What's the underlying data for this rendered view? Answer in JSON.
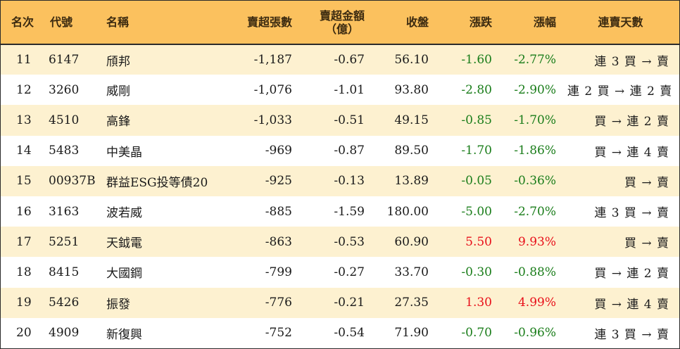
{
  "colors": {
    "header_bg": "#fbc15e",
    "stripe_bg": "#fdf1d0",
    "down_color": "#1a7d1a",
    "up_color": "#e8101a"
  },
  "headers": {
    "rank": "名次",
    "code": "代號",
    "name": "名稱",
    "net_sell_lots": "賣超張數",
    "net_sell_amount_line1": "賣超金額",
    "net_sell_amount_line2": "（億）",
    "close": "收盤",
    "change": "漲跌",
    "change_pct": "漲幅",
    "streak": "連賣天數"
  },
  "rows": [
    {
      "rank": "11",
      "code": "6147",
      "name": "頎邦",
      "lots": "-1,187",
      "amount": "-0.67",
      "close": "56.10",
      "change": "-1.60",
      "pct": "-2.77%",
      "dir": "down",
      "streak": "連 3 買 → 賣"
    },
    {
      "rank": "12",
      "code": "3260",
      "name": "威剛",
      "lots": "-1,076",
      "amount": "-1.01",
      "close": "93.80",
      "change": "-2.80",
      "pct": "-2.90%",
      "dir": "down",
      "streak": "連 2 買 → 連 2 賣"
    },
    {
      "rank": "13",
      "code": "4510",
      "name": "高鋒",
      "lots": "-1,033",
      "amount": "-0.51",
      "close": "49.15",
      "change": "-0.85",
      "pct": "-1.70%",
      "dir": "down",
      "streak": "買 → 連 2 賣"
    },
    {
      "rank": "14",
      "code": "5483",
      "name": "中美晶",
      "lots": "-969",
      "amount": "-0.87",
      "close": "89.50",
      "change": "-1.70",
      "pct": "-1.86%",
      "dir": "down",
      "streak": "買 → 連 4 賣"
    },
    {
      "rank": "15",
      "code": "00937B",
      "name": "群益ESG投等債20",
      "lots": "-925",
      "amount": "-0.13",
      "close": "13.89",
      "change": "-0.05",
      "pct": "-0.36%",
      "dir": "down",
      "streak": "買 → 賣"
    },
    {
      "rank": "16",
      "code": "3163",
      "name": "波若威",
      "lots": "-885",
      "amount": "-1.59",
      "close": "180.00",
      "change": "-5.00",
      "pct": "-2.70%",
      "dir": "down",
      "streak": "連 3 買 → 賣"
    },
    {
      "rank": "17",
      "code": "5251",
      "name": "天鉞電",
      "lots": "-863",
      "amount": "-0.53",
      "close": "60.90",
      "change": "5.50",
      "pct": "9.93%",
      "dir": "up",
      "streak": "買 → 賣"
    },
    {
      "rank": "18",
      "code": "8415",
      "name": "大國鋼",
      "lots": "-799",
      "amount": "-0.27",
      "close": "33.70",
      "change": "-0.30",
      "pct": "-0.88%",
      "dir": "down",
      "streak": "買 → 連 2 賣"
    },
    {
      "rank": "19",
      "code": "5426",
      "name": "振發",
      "lots": "-776",
      "amount": "-0.21",
      "close": "27.35",
      "change": "1.30",
      "pct": "4.99%",
      "dir": "up",
      "streak": "買 → 連 4 賣"
    },
    {
      "rank": "20",
      "code": "4909",
      "name": "新復興",
      "lots": "-752",
      "amount": "-0.54",
      "close": "71.90",
      "change": "-0.70",
      "pct": "-0.96%",
      "dir": "down",
      "streak": "連 3 買 → 賣"
    }
  ]
}
